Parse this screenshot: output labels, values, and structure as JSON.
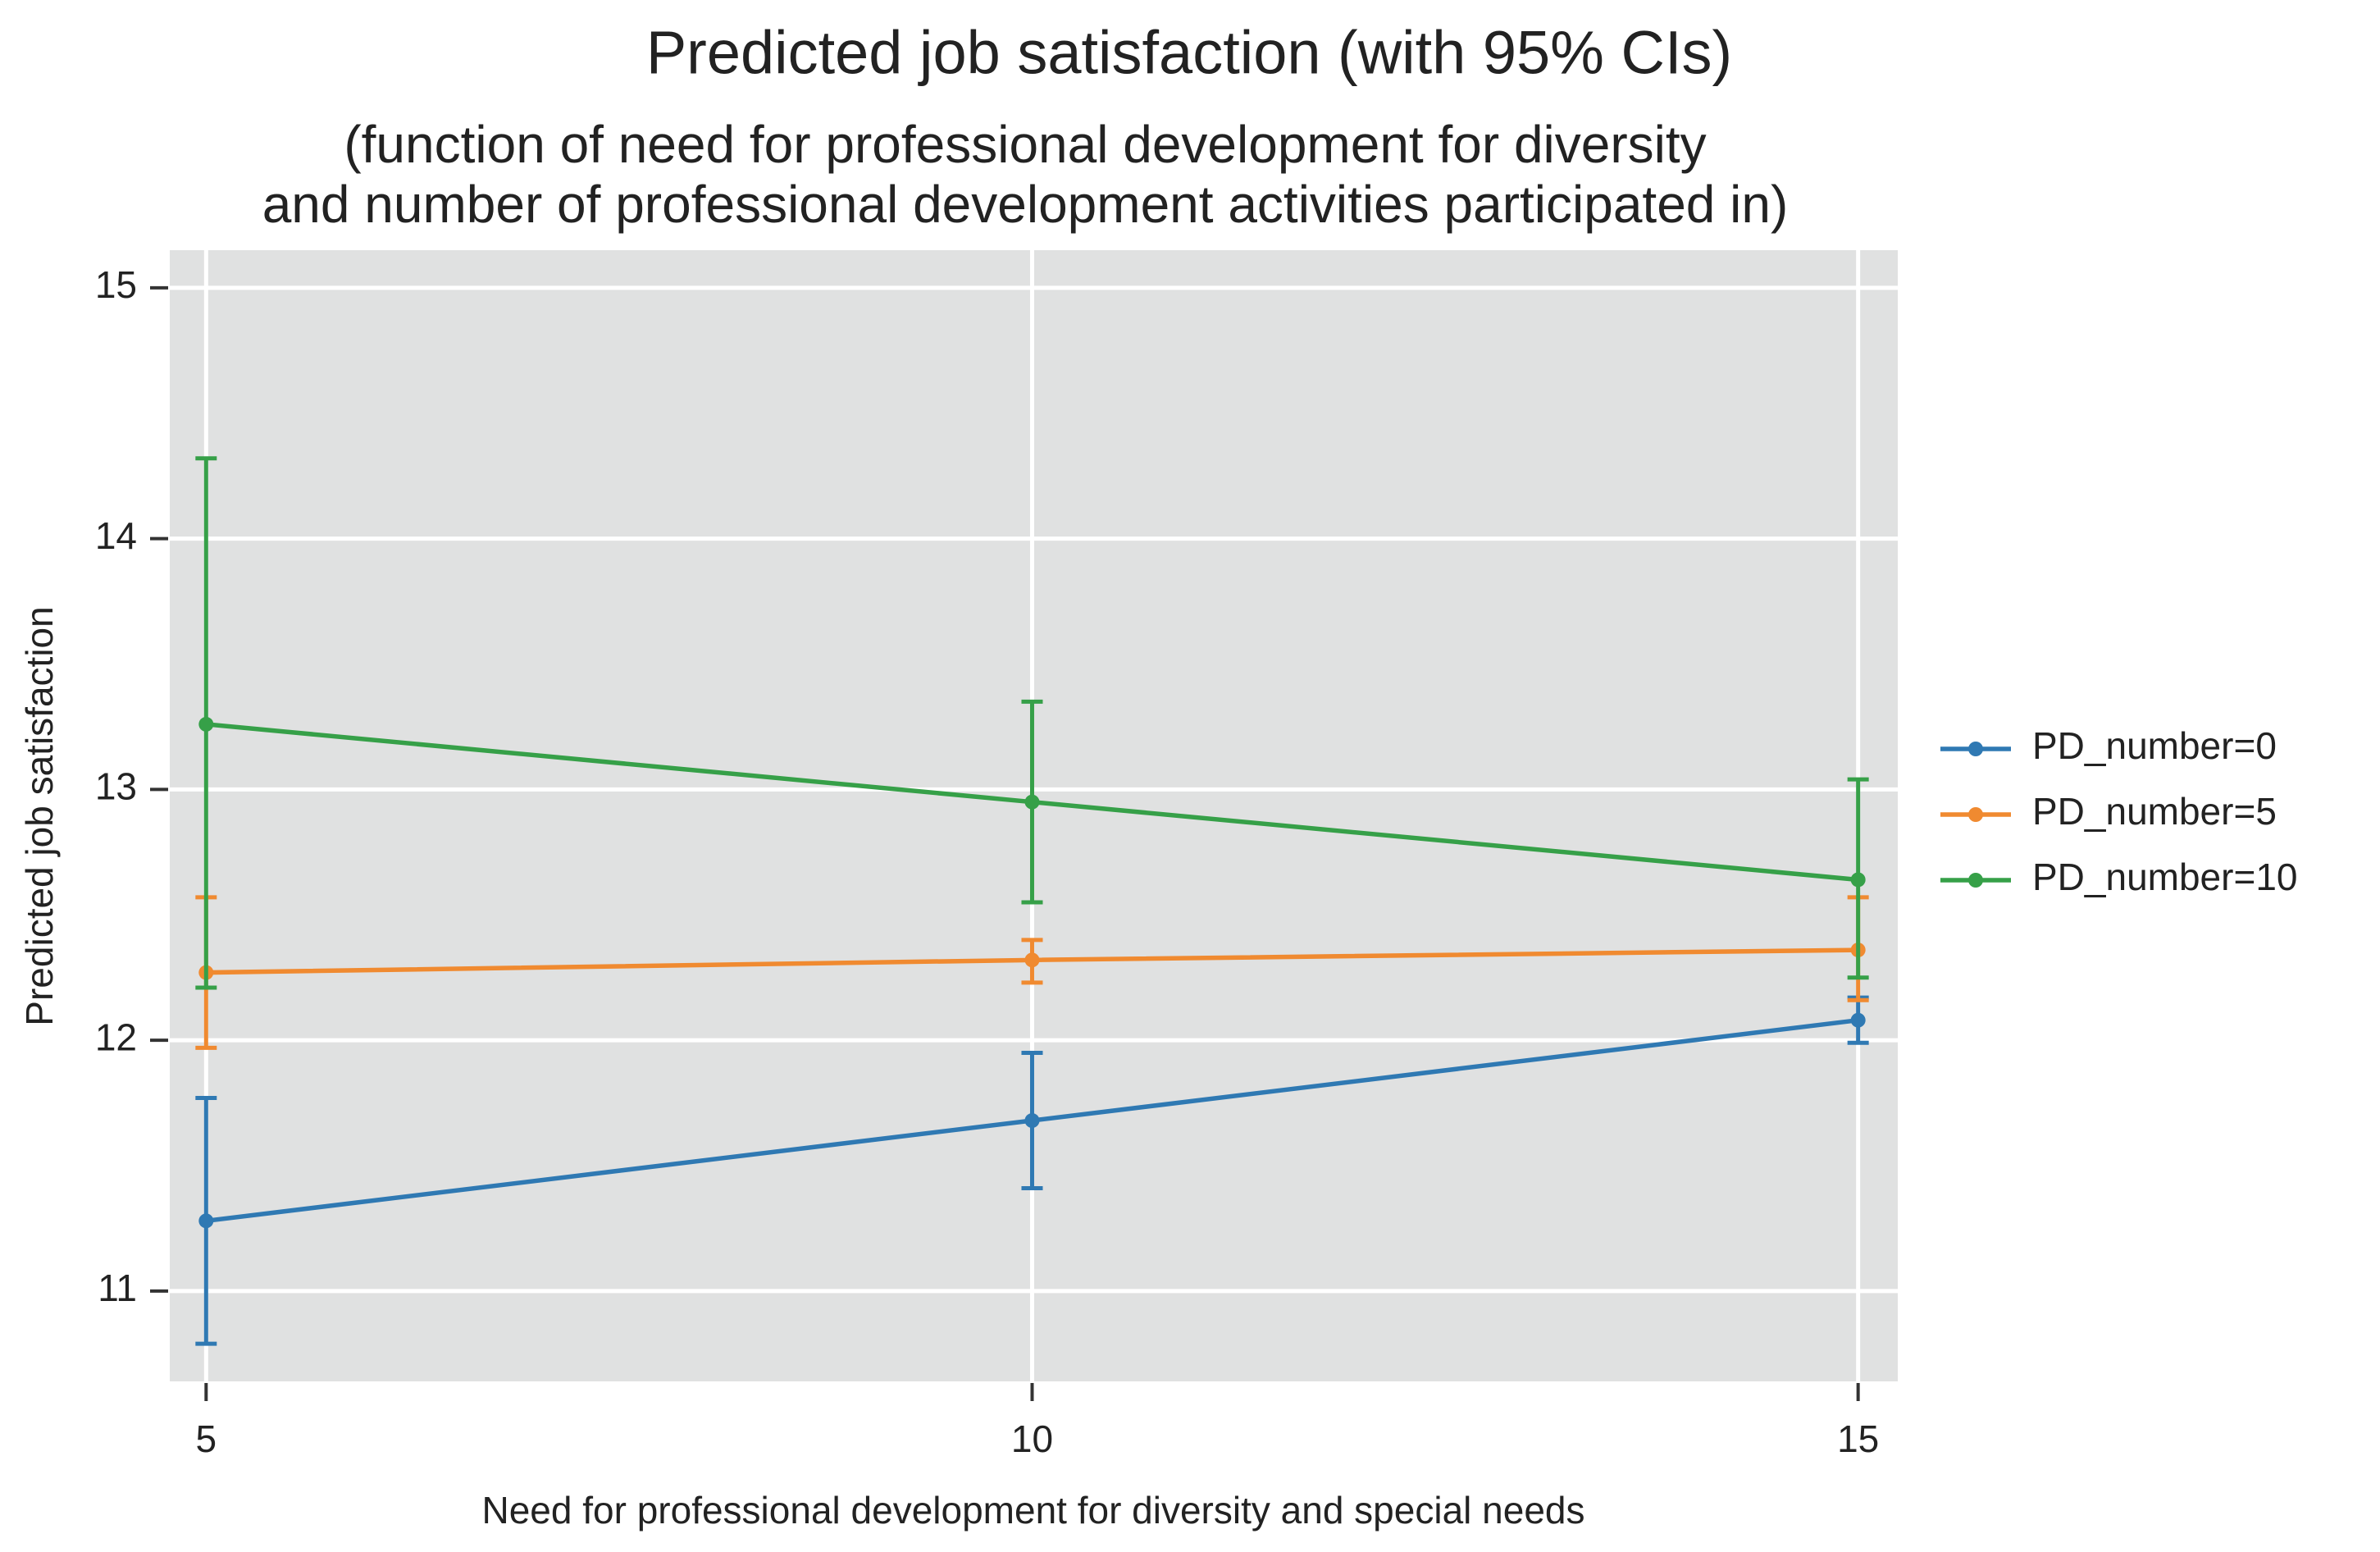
{
  "chart_data": {
    "type": "line",
    "title": "Predicted job satisfaction (with 95% CIs)",
    "subtitle": [
      "(function of need for professional development for diversity",
      "and number of professional development activities participated in)"
    ],
    "x_label": "Need for professional development for diversity and special needs",
    "y_label": "Predicted job satisfaction",
    "x": [
      5,
      10,
      15
    ],
    "series": [
      {
        "name": "PD_number=0",
        "color": "#2f79b3",
        "values": [
          11.28,
          11.68,
          12.08
        ],
        "lower": [
          10.79,
          11.41,
          11.99
        ],
        "upper": [
          11.77,
          11.95,
          12.17
        ]
      },
      {
        "name": "PD_number=5",
        "color": "#f08a30",
        "values": [
          12.27,
          12.32,
          12.36
        ],
        "lower": [
          11.97,
          12.23,
          12.16
        ],
        "upper": [
          12.57,
          12.4,
          12.57
        ]
      },
      {
        "name": "PD_number=10",
        "color": "#36a048",
        "values": [
          13.26,
          12.95,
          12.64
        ],
        "lower": [
          12.21,
          12.55,
          12.25
        ],
        "upper": [
          14.32,
          13.35,
          13.04
        ]
      }
    ],
    "xlim": [
      4.78,
      15.24
    ],
    "ylim": [
      10.64,
      15.15
    ],
    "xticks": [
      5,
      10,
      15
    ],
    "yticks": [
      11,
      12,
      13,
      14,
      15
    ],
    "grid": true,
    "legend": "right"
  }
}
